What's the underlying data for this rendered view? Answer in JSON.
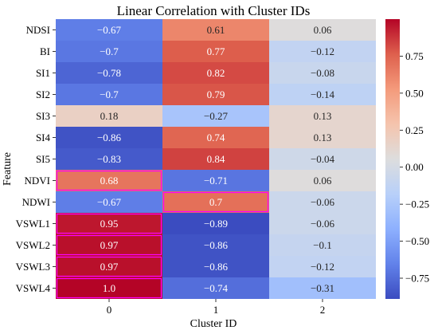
{
  "chart_data": {
    "type": "heatmap",
    "title": "Linear Correlation with Cluster IDs",
    "xlabel": "Cluster ID",
    "ylabel": "Feature",
    "columns": [
      "0",
      "1",
      "2"
    ],
    "rows": [
      "NDSI",
      "BI",
      "SI1",
      "SI2",
      "SI3",
      "SI4",
      "SI5",
      "NDVI",
      "NDWI",
      "VSWL1",
      "VSWL2",
      "VSWL3",
      "VSWL4"
    ],
    "values": [
      [
        -0.67,
        0.61,
        0.06
      ],
      [
        -0.7,
        0.77,
        -0.12
      ],
      [
        -0.78,
        0.82,
        -0.08
      ],
      [
        -0.7,
        0.79,
        -0.14
      ],
      [
        0.18,
        -0.27,
        0.13
      ],
      [
        -0.86,
        0.74,
        0.13
      ],
      [
        -0.83,
        0.84,
        -0.04
      ],
      [
        0.68,
        -0.71,
        0.06
      ],
      [
        -0.67,
        0.7,
        -0.06
      ],
      [
        0.95,
        -0.89,
        -0.06
      ],
      [
        0.97,
        -0.86,
        -0.1
      ],
      [
        0.97,
        -0.86,
        -0.12
      ],
      [
        1.0,
        -0.74,
        -0.31
      ]
    ],
    "value_labels": [
      [
        "−0.67",
        "0.61",
        "0.06"
      ],
      [
        "−0.7",
        "0.77",
        "−0.12"
      ],
      [
        "−0.78",
        "0.82",
        "−0.08"
      ],
      [
        "−0.7",
        "0.79",
        "−0.14"
      ],
      [
        "0.18",
        "−0.27",
        "0.13"
      ],
      [
        "−0.86",
        "0.74",
        "0.13"
      ],
      [
        "−0.83",
        "0.84",
        "−0.04"
      ],
      [
        "0.68",
        "−0.71",
        "0.06"
      ],
      [
        "−0.67",
        "0.7",
        "−0.06"
      ],
      [
        "0.95",
        "−0.89",
        "−0.06"
      ],
      [
        "0.97",
        "−0.86",
        "−0.1"
      ],
      [
        "0.97",
        "−0.86",
        "−0.12"
      ],
      [
        "1.0",
        "−0.74",
        "−0.31"
      ]
    ],
    "colormap": "coolwarm",
    "vmin": -0.89,
    "vmax": 1.0,
    "colorbar_ticks": [
      0.75,
      0.5,
      0.25,
      0.0,
      -0.25,
      -0.5,
      -0.75
    ],
    "colorbar_tick_labels": [
      "0.75",
      "0.50",
      "0.25",
      "0.00",
      "−0.25",
      "−0.50",
      "−0.75"
    ],
    "highlight_color": "#ff00ff",
    "highlighted_cells": [
      [
        7,
        0
      ],
      [
        8,
        1
      ],
      [
        9,
        0
      ],
      [
        10,
        0
      ],
      [
        11,
        0
      ],
      [
        12,
        0
      ]
    ]
  }
}
